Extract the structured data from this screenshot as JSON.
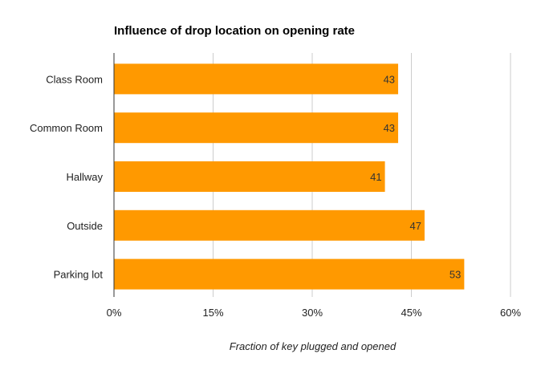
{
  "chart_data": {
    "type": "bar",
    "orientation": "horizontal",
    "title": "Influence of drop location on opening rate",
    "xlabel": "Fraction of key plugged and opened",
    "ylabel": "",
    "categories": [
      "Class Room",
      "Common Room",
      "Hallway",
      "Outside",
      "Parking lot"
    ],
    "values": [
      43,
      43,
      41,
      47,
      53
    ],
    "data_labels": [
      "43",
      "43",
      "41",
      "47",
      "53"
    ],
    "xlim": [
      0,
      60
    ],
    "x_ticks": [
      0,
      15,
      30,
      45,
      60
    ],
    "x_tick_labels": [
      "0%",
      "15%",
      "30%",
      "45%",
      "60%"
    ],
    "grid": true,
    "legend": "none",
    "bar_color": "#ff9900"
  }
}
